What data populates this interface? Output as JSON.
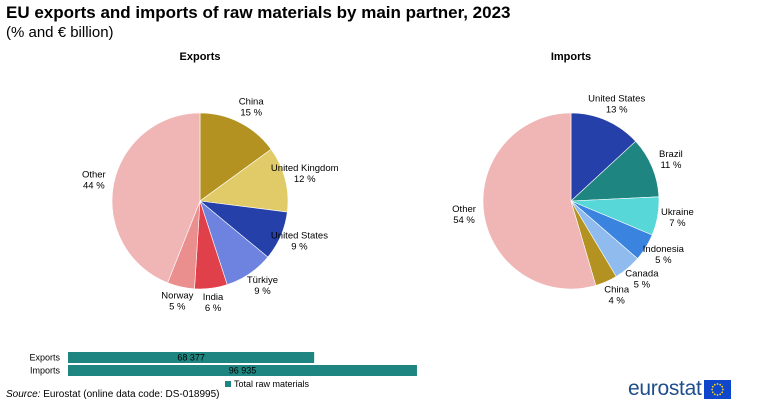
{
  "title": "EU exports and imports of raw materials by main partner, 2023",
  "subtitle": "(% and € billion)",
  "source_label": "Source:",
  "source_text": "Eurostat (online data code: DS-018995)",
  "logo_text": "eurostat",
  "colors": {
    "China_export": "#b39222",
    "United Kingdom": "#e1cb68",
    "United States": "#2540a9",
    "Türkiye": "#6e83e0",
    "India": "#e0404a",
    "Norway": "#ea8e8e",
    "Other": "#f0b5b5",
    "Brazil": "#1f8580",
    "Ukraine": "#57d7d7",
    "Indonesia": "#3a84e0",
    "Canada": "#8fbbef",
    "China_import": "#b39222",
    "bar": "#1f8580"
  },
  "chart_data": [
    {
      "type": "pie",
      "title": "Exports",
      "slices": [
        {
          "label": "China",
          "value": 15,
          "value_label": "15 %"
        },
        {
          "label": "United Kingdom",
          "value": 12,
          "value_label": "12 %"
        },
        {
          "label": "United States",
          "value": 9,
          "value_label": "9 %"
        },
        {
          "label": "Türkiye",
          "value": 9,
          "value_label": "9 %"
        },
        {
          "label": "India",
          "value": 6,
          "value_label": "6 %"
        },
        {
          "label": "Norway",
          "value": 5,
          "value_label": "5 %"
        },
        {
          "label": "Other",
          "value": 44,
          "value_label": "44 %"
        }
      ]
    },
    {
      "type": "pie",
      "title": "Imports",
      "slices": [
        {
          "label": "United States",
          "value": 13,
          "value_label": "13 %"
        },
        {
          "label": "Brazil",
          "value": 11,
          "value_label": "11 %"
        },
        {
          "label": "Ukraine",
          "value": 7,
          "value_label": "7 %"
        },
        {
          "label": "Indonesia",
          "value": 5,
          "value_label": "5 %"
        },
        {
          "label": "Canada",
          "value": 5,
          "value_label": "5 %"
        },
        {
          "label": "China",
          "value": 4,
          "value_label": "4 %"
        },
        {
          "label": "Other",
          "value": 54,
          "value_label": "54 %"
        }
      ]
    },
    {
      "type": "bar",
      "orientation": "horizontal",
      "categories": [
        "Exports",
        "Imports"
      ],
      "series": [
        {
          "name": "Total raw materials",
          "values": [
            68.377,
            96.935
          ],
          "value_labels": [
            "68 377",
            "96 935"
          ]
        }
      ],
      "legend": "bottom"
    }
  ]
}
